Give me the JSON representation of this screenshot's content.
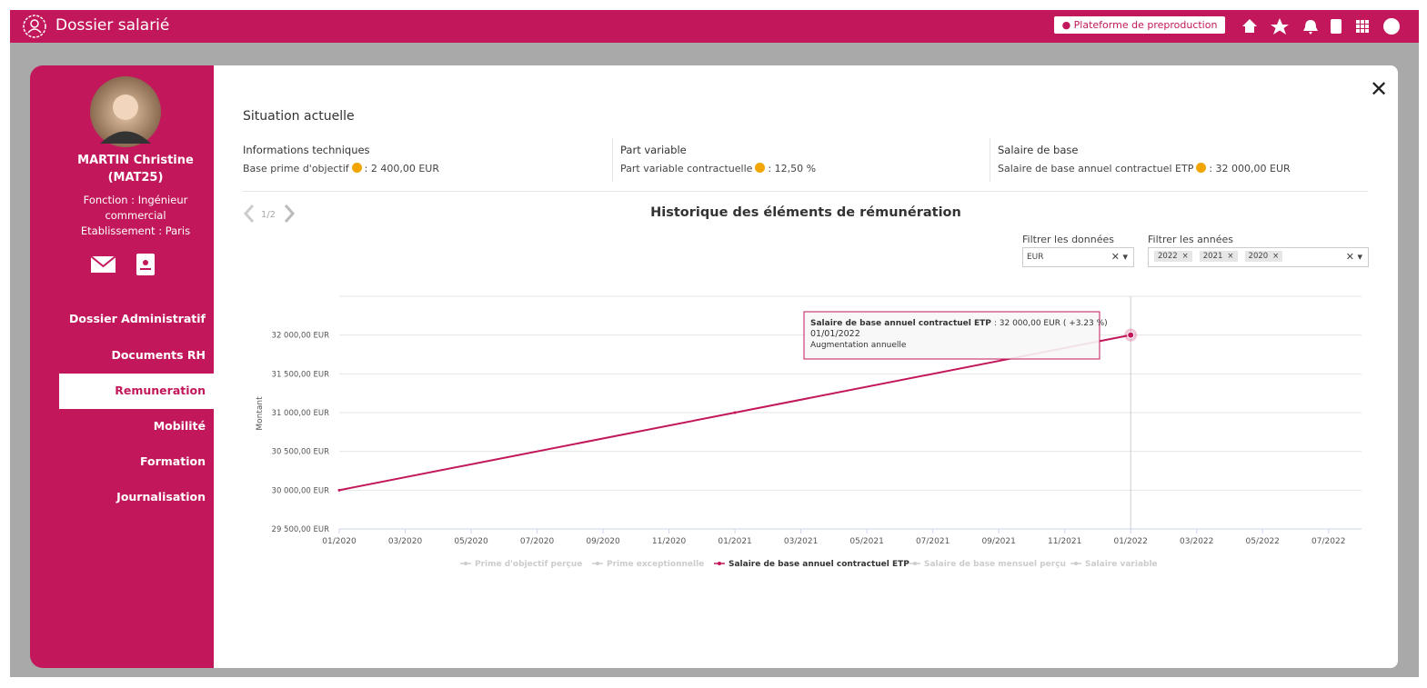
{
  "header": {
    "app_title": "Dossier salarié",
    "env_badge": "Plateforme de preproduction"
  },
  "profile": {
    "name": "MARTIN Christine",
    "id": "(MAT25)",
    "function": "Fonction : Ingénieur commercial",
    "establishment": "Etablissement : Paris"
  },
  "nav": {
    "items": [
      "Dossier Administratif",
      "Documents RH",
      "Remuneration",
      "Mobilité",
      "Formation",
      "Journalisation"
    ],
    "active": 2
  },
  "section_title": "Situation actuelle",
  "info_columns": [
    {
      "title": "Informations techniques",
      "label": "Base prime d'objectif",
      "value": ": 2 400,00 EUR"
    },
    {
      "title": "Part variable",
      "label": "Part variable contractuelle",
      "value": ": 12,50 %"
    },
    {
      "title": "Salaire de base",
      "label": "Salaire de base annuel contractuel ETP",
      "value": ": 32 000,00 EUR"
    }
  ],
  "pager": "1/2",
  "filters": {
    "data_label": "Filtrer les données",
    "data_value": "EUR",
    "years_label": "Filtrer les années",
    "years": [
      "2022",
      "2021",
      "2020"
    ]
  },
  "chart_data": {
    "type": "line",
    "title": "Historique des éléments de rémunération",
    "y_label": "Montant",
    "x": [
      "01/2020",
      "01/2021",
      "01/2022"
    ],
    "xlim": [
      "01/2020",
      "08/2022"
    ],
    "xticks": [
      "01/2020",
      "03/2020",
      "05/2020",
      "07/2020",
      "09/2020",
      "11/2020",
      "01/2021",
      "03/2021",
      "05/2021",
      "07/2021",
      "09/2021",
      "11/2021",
      "01/2022",
      "03/2022",
      "05/2022",
      "07/2022"
    ],
    "ylim": [
      29500,
      32500
    ],
    "yticks": [
      {
        "value": 29500,
        "label": "29 500,00 EUR"
      },
      {
        "value": 30000,
        "label": "30 000,00 EUR"
      },
      {
        "value": 30500,
        "label": "30 500,00 EUR"
      },
      {
        "value": 31000,
        "label": "31 000,00 EUR"
      },
      {
        "value": 31500,
        "label": "31 500,00 EUR"
      },
      {
        "value": 32000,
        "label": "32 000,00 EUR"
      }
    ],
    "grid": true,
    "series": [
      {
        "name": "Prime d'objectif perçue",
        "color": "#cccccc",
        "visible": false,
        "values": [
          null,
          null,
          null
        ]
      },
      {
        "name": "Prime exceptionnelle",
        "color": "#cccccc",
        "visible": false,
        "values": [
          null,
          null,
          null
        ]
      },
      {
        "name": "Salaire de base annuel contractuel ETP",
        "color": "#c2185b",
        "visible": true,
        "values": [
          30000,
          31000,
          32000
        ]
      },
      {
        "name": "Salaire de base mensuel perçu",
        "color": "#cccccc",
        "visible": false,
        "values": [
          null,
          null,
          null
        ]
      },
      {
        "name": "Salaire variable",
        "color": "#cccccc",
        "visible": false,
        "values": [
          null,
          null,
          null
        ]
      }
    ],
    "tooltip": {
      "value_text": ": 32 000,00 EUR ( +3.23 %)",
      "date": "01/01/2022",
      "note": "Augmentation annuelle"
    }
  }
}
